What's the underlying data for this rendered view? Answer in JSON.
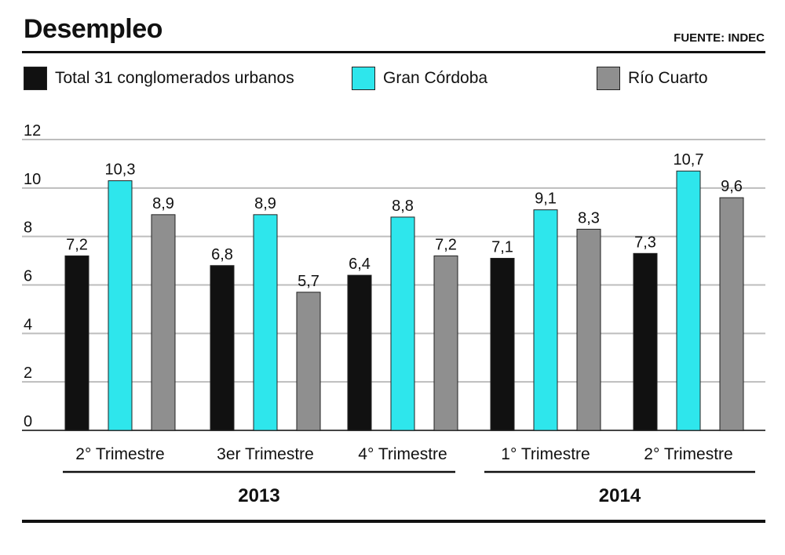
{
  "header": {
    "title": "Desempleo",
    "source": "FUENTE: INDEC"
  },
  "colors": {
    "total": "#111111",
    "cordoba": "#2ee6ec",
    "rio_cuarto": "#8f8f8f",
    "grid": "#bdbdbd"
  },
  "chart_data": {
    "type": "bar",
    "title": "Desempleo",
    "ylim": [
      0,
      12
    ],
    "yticks": [
      "0",
      "2",
      "4",
      "6",
      "8",
      "10",
      "12"
    ],
    "grid": true,
    "legend_position": "top",
    "categories": [
      "2° Trimestre",
      "3er Trimestre",
      "4° Trimestre",
      "1° Trimestre",
      "2° Trimestre"
    ],
    "year_groups": [
      {
        "label": "2013",
        "categories": [
          0,
          1,
          2
        ]
      },
      {
        "label": "2014",
        "categories": [
          3,
          4
        ]
      }
    ],
    "series": [
      {
        "name": "Total 31 conglomerados urbanos",
        "values": [
          7.2,
          6.8,
          6.4,
          7.1,
          7.3
        ],
        "labels": [
          "7,2",
          "6,8",
          "6,4",
          "7,1",
          "7,3"
        ]
      },
      {
        "name": "Gran Córdoba",
        "values": [
          10.3,
          8.9,
          8.8,
          9.1,
          10.7
        ],
        "labels": [
          "10,3",
          "8,9",
          "8,8",
          "9,1",
          "10,7"
        ]
      },
      {
        "name": "Río Cuarto",
        "values": [
          8.9,
          5.7,
          7.2,
          8.3,
          9.6
        ],
        "labels": [
          "8,9",
          "5,7",
          "7,2",
          "8,3",
          "9,6"
        ]
      }
    ]
  }
}
